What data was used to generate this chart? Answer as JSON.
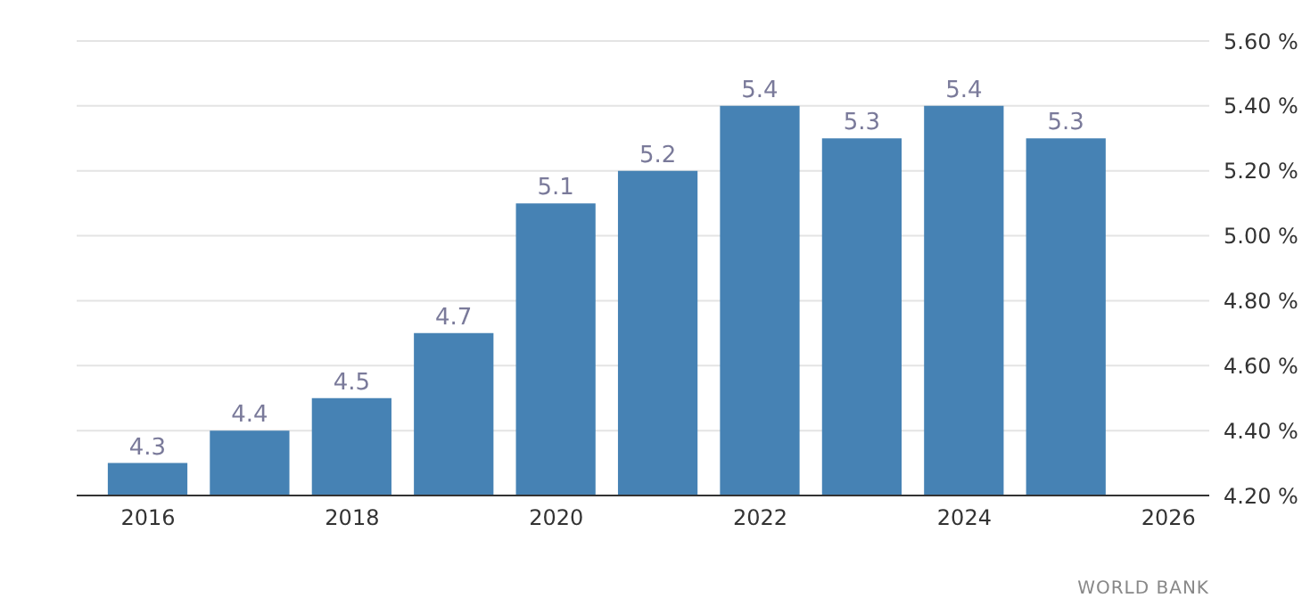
{
  "chart_data": {
    "type": "bar",
    "x": [
      2016,
      2017,
      2018,
      2019,
      2020,
      2021,
      2022,
      2023,
      2024,
      2025
    ],
    "values": [
      4.3,
      4.4,
      4.5,
      4.7,
      5.1,
      5.2,
      5.4,
      5.3,
      5.4,
      5.3
    ],
    "color": "#4682b4",
    "xlim": [
      2015.3,
      2026.4
    ],
    "xticks": [
      2016,
      2018,
      2020,
      2022,
      2024,
      2026
    ],
    "ylim": [
      4.2,
      5.6
    ],
    "yticks": [
      {
        "value": 4.2,
        "label": "4.20 %"
      },
      {
        "value": 4.4,
        "label": "4.40 %"
      },
      {
        "value": 4.6,
        "label": "4.60 %"
      },
      {
        "value": 4.8,
        "label": "4.80 %"
      },
      {
        "value": 5.0,
        "label": "5.00 %"
      },
      {
        "value": 5.2,
        "label": "5.20 %"
      },
      {
        "value": 5.4,
        "label": "5.40 %"
      },
      {
        "value": 5.6,
        "label": "5.60 %"
      }
    ],
    "grid": "y",
    "data_labels": true,
    "annotations": [
      "WORLD BANK"
    ]
  }
}
